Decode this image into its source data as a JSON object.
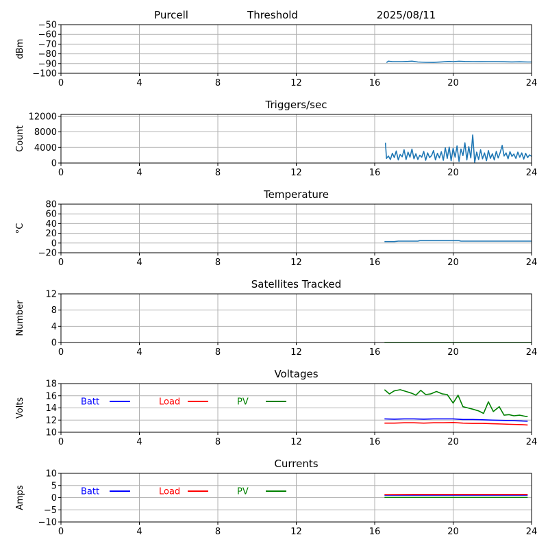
{
  "header": {
    "station": "Purcell",
    "mode": "Threshold",
    "date": "2025/08/11"
  },
  "chart_data": [
    {
      "type": "line",
      "title": "",
      "xlabel": "",
      "ylabel": "dBm",
      "xlim": [
        0,
        24
      ],
      "ylim": [
        -100,
        -50
      ],
      "xticks": [
        "0",
        "4",
        "8",
        "12",
        "16",
        "20",
        "24"
      ],
      "yticks": [
        "−100",
        "−90",
        "−80",
        "−70",
        "−60",
        "−50"
      ],
      "grid": true,
      "series": [
        {
          "color": "#1f77b4",
          "x": [
            16.6,
            16.7,
            16.9,
            17.1,
            17.4,
            17.7,
            17.9,
            18.2,
            18.6,
            19.0,
            19.4,
            19.8,
            20.0,
            20.3,
            20.6,
            21.0,
            21.4,
            21.8,
            22.2,
            22.6,
            23.0,
            23.4,
            23.8,
            24.0
          ],
          "y": [
            -89,
            -87.5,
            -88,
            -88,
            -88,
            -87.8,
            -87.5,
            -88.4,
            -88.7,
            -88.8,
            -88.3,
            -87.8,
            -88,
            -87.6,
            -87.9,
            -88,
            -88.1,
            -88,
            -88,
            -88.2,
            -88.3,
            -88.2,
            -88.4,
            -88.4
          ]
        }
      ]
    },
    {
      "type": "line",
      "title": "Triggers/sec",
      "xlabel": "",
      "ylabel": "Count",
      "xlim": [
        0,
        24
      ],
      "ylim": [
        0,
        12500
      ],
      "xticks": [
        "0",
        "4",
        "8",
        "12",
        "16",
        "20",
        "24"
      ],
      "yticks": [
        "0",
        "4000",
        "8000",
        "12000"
      ],
      "grid": true,
      "series": [
        {
          "color": "#1f77b4",
          "x": [
            16.55,
            16.6,
            16.7,
            16.8,
            16.9,
            17.0,
            17.1,
            17.2,
            17.3,
            17.4,
            17.5,
            17.6,
            17.7,
            17.8,
            17.9,
            18.0,
            18.1,
            18.2,
            18.3,
            18.4,
            18.5,
            18.6,
            18.7,
            18.8,
            18.9,
            19.0,
            19.1,
            19.2,
            19.3,
            19.4,
            19.5,
            19.6,
            19.7,
            19.8,
            19.9,
            20.0,
            20.1,
            20.2,
            20.3,
            20.4,
            20.5,
            20.6,
            20.7,
            20.8,
            20.9,
            21.0,
            21.1,
            21.2,
            21.3,
            21.4,
            21.5,
            21.6,
            21.7,
            21.8,
            21.9,
            22.0,
            22.1,
            22.2,
            22.3,
            22.4,
            22.5,
            22.6,
            22.7,
            22.8,
            22.9,
            23.0,
            23.1,
            23.2,
            23.3,
            23.4,
            23.5,
            23.6,
            23.7,
            23.8,
            23.9,
            24.0
          ],
          "y": [
            5200,
            1200,
            1800,
            900,
            2500,
            1400,
            3100,
            800,
            2200,
            1600,
            3400,
            900,
            2800,
            1500,
            3600,
            1100,
            2400,
            900,
            2000,
            1500,
            3000,
            700,
            2600,
            1400,
            1900,
            3200,
            800,
            2500,
            1300,
            2900,
            700,
            3900,
            1200,
            4100,
            600,
            3800,
            1500,
            4400,
            400,
            3600,
            1900,
            5200,
            800,
            4200,
            1300,
            7200,
            200,
            2800,
            900,
            3400,
            1100,
            2600,
            600,
            3200,
            1200,
            2400,
            800,
            3000,
            1300,
            2700,
            4500,
            1800,
            2600,
            1100,
            2900,
            1700,
            2300,
            1200,
            2800,
            1500,
            2600,
            1000,
            2500,
            1400,
            2100,
            1700
          ]
        }
      ]
    },
    {
      "type": "line",
      "title": "Temperature",
      "xlabel": "",
      "ylabel": "°C",
      "xlim": [
        0,
        24
      ],
      "ylim": [
        -20,
        80
      ],
      "xticks": [
        "0",
        "4",
        "8",
        "12",
        "16",
        "20",
        "24"
      ],
      "yticks": [
        "−20",
        "0",
        "20",
        "40",
        "60",
        "80"
      ],
      "grid": true,
      "series": [
        {
          "color": "#1f77b4",
          "x": [
            16.5,
            17.0,
            17.2,
            18.2,
            18.3,
            20.3,
            20.4,
            24.0
          ],
          "y": [
            3,
            3,
            4,
            4,
            5,
            5,
            4,
            4
          ]
        }
      ]
    },
    {
      "type": "line",
      "title": "Satellites Tracked",
      "xlabel": "",
      "ylabel": "Number",
      "xlim": [
        0,
        24
      ],
      "ylim": [
        0,
        12
      ],
      "xticks": [
        "0",
        "4",
        "8",
        "12",
        "16",
        "20",
        "24"
      ],
      "yticks": [
        "0",
        "4",
        "8",
        "12"
      ],
      "grid": true,
      "series": [
        {
          "color": "#2ca02c",
          "x": [
            16.5,
            24.0
          ],
          "y": [
            0,
            0
          ]
        }
      ]
    },
    {
      "type": "line",
      "title": "Voltages",
      "xlabel": "",
      "ylabel": "Volts",
      "xlim": [
        0,
        24
      ],
      "ylim": [
        10,
        18
      ],
      "xticks": [
        "0",
        "4",
        "8",
        "12",
        "16",
        "20",
        "24"
      ],
      "yticks": [
        "10",
        "12",
        "14",
        "16",
        "18"
      ],
      "grid": true,
      "legend": "top-left",
      "series": [
        {
          "name": "Batt",
          "color": "#0000ff",
          "x": [
            16.5,
            17.0,
            17.5,
            18.0,
            18.5,
            19.0,
            19.5,
            20.0,
            20.5,
            21.0,
            21.5,
            22.0,
            22.5,
            23.0,
            23.5,
            23.8
          ],
          "y": [
            12.2,
            12.15,
            12.2,
            12.2,
            12.15,
            12.2,
            12.2,
            12.2,
            12.1,
            12.1,
            12.05,
            12.0,
            11.95,
            11.9,
            11.85,
            11.8
          ]
        },
        {
          "name": "Load",
          "color": "#ff0000",
          "x": [
            16.5,
            17.0,
            17.5,
            18.0,
            18.5,
            19.0,
            19.5,
            20.0,
            20.5,
            21.0,
            21.5,
            22.0,
            22.5,
            23.0,
            23.5,
            23.8
          ],
          "y": [
            11.5,
            11.5,
            11.55,
            11.55,
            11.5,
            11.55,
            11.55,
            11.6,
            11.5,
            11.45,
            11.45,
            11.4,
            11.35,
            11.3,
            11.25,
            11.2
          ]
        },
        {
          "name": "PV",
          "color": "#008000",
          "x": [
            16.5,
            16.75,
            17.0,
            17.3,
            17.6,
            17.9,
            18.1,
            18.35,
            18.6,
            18.85,
            19.15,
            19.45,
            19.7,
            20.0,
            20.25,
            20.5,
            20.75,
            21.0,
            21.3,
            21.55,
            21.8,
            22.05,
            22.35,
            22.6,
            22.85,
            23.1,
            23.4,
            23.7,
            23.8
          ],
          "y": [
            17.0,
            16.3,
            16.8,
            17.0,
            16.7,
            16.4,
            16.1,
            16.9,
            16.2,
            16.3,
            16.7,
            16.3,
            16.2,
            14.8,
            16.1,
            14.2,
            14.0,
            13.8,
            13.5,
            13.1,
            15.0,
            13.4,
            14.2,
            12.8,
            12.9,
            12.7,
            12.8,
            12.6,
            12.6
          ]
        }
      ]
    },
    {
      "type": "line",
      "title": "Currents",
      "xlabel": "",
      "ylabel": "Amps",
      "xlim": [
        0,
        24
      ],
      "ylim": [
        -10,
        10
      ],
      "xticks": [
        "0",
        "4",
        "8",
        "12",
        "16",
        "20",
        "24"
      ],
      "yticks": [
        "−10",
        "−5",
        "0",
        "5",
        "10"
      ],
      "grid": true,
      "legend": "top-left",
      "series": [
        {
          "name": "Batt",
          "color": "#0000ff",
          "x": [
            16.5,
            20.0,
            23.8
          ],
          "y": [
            1.0,
            1.0,
            1.0
          ]
        },
        {
          "name": "Load",
          "color": "#ff0000",
          "x": [
            16.5,
            18.0,
            20.0,
            22.0,
            23.8
          ],
          "y": [
            1.2,
            1.3,
            1.3,
            1.3,
            1.3
          ]
        },
        {
          "name": "PV",
          "color": "#008000",
          "x": [
            16.5,
            20.0,
            23.8
          ],
          "y": [
            0.1,
            0.1,
            0.1
          ]
        }
      ]
    }
  ]
}
